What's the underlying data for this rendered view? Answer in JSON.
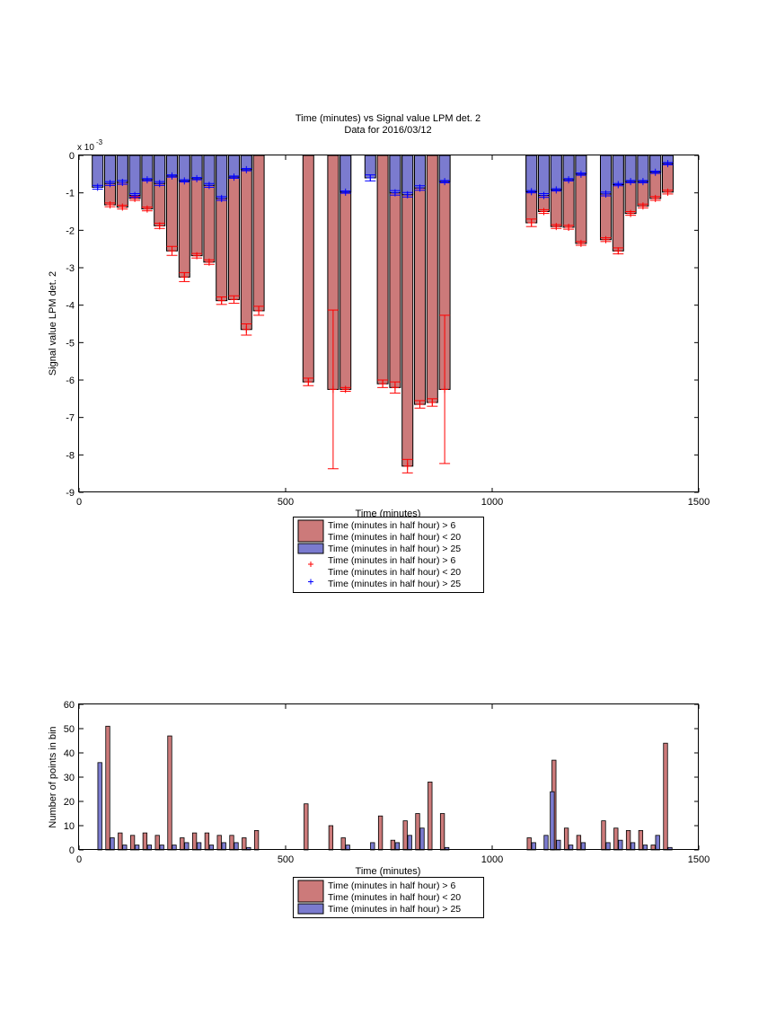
{
  "colors": {
    "series_a_face": "#cc7a7a",
    "series_b_face": "#7b7bcf",
    "bar_edge": "#000000",
    "series_a_marker": "#ff0000",
    "series_b_marker": "#0000ff",
    "axis": "#000000"
  },
  "chart_data": [
    {
      "type": "bar",
      "title": "Time (minutes) vs Signal value LPM det. 2",
      "subtitle": "Data for 2016/03/12",
      "xlabel": "Time (minutes)",
      "ylabel": "Signal value LPM det. 2",
      "exponent_label": "x 10",
      "exponent_power": "-3",
      "xlim": [
        0,
        1500
      ],
      "ylim": [
        -9,
        0
      ],
      "xticks": [
        0,
        500,
        1000,
        1500
      ],
      "yticks": [
        0,
        -1,
        -2,
        -3,
        -4,
        -5,
        -6,
        -7,
        -8,
        -9
      ],
      "grid": false,
      "legend_position": "below",
      "legend": [
        {
          "kind": "bar",
          "series": "a",
          "lines": [
            "Time (minutes in half hour) > 6",
            "Time (minutes in half hour) < 20"
          ]
        },
        {
          "kind": "bar",
          "series": "b",
          "lines": [
            "Time (minutes in half hour) > 25"
          ]
        },
        {
          "kind": "marker",
          "series": "a",
          "lines": [
            "Time (minutes in half hour) > 6",
            "Time (minutes in half hour) < 20"
          ]
        },
        {
          "kind": "marker",
          "series": "b",
          "lines": [
            "Time (minutes in half hour) > 25"
          ]
        }
      ],
      "series": [
        {
          "x": [
            75,
            105,
            135,
            165,
            195,
            225,
            255,
            285,
            315,
            345,
            375,
            405,
            435,
            555,
            615,
            645,
            735,
            765,
            795,
            825,
            855,
            885,
            1095,
            1125,
            1155,
            1185,
            1215,
            1275,
            1305,
            1335,
            1365,
            1395,
            1425
          ],
          "values": [
            -1.32,
            -1.38,
            -1.15,
            -1.43,
            -1.88,
            -2.55,
            -3.25,
            -2.68,
            -2.85,
            -3.88,
            -3.85,
            -4.65,
            -4.15,
            -6.05,
            -6.25,
            -6.25,
            -6.1,
            -6.2,
            -8.3,
            -6.65,
            -6.6,
            -6.25,
            -1.8,
            -1.5,
            -1.9,
            -1.92,
            -2.35,
            -2.25,
            -2.55,
            -1.55,
            -1.35,
            -1.15,
            -0.98
          ],
          "err": [
            0.05,
            0.05,
            0.05,
            0.05,
            0.07,
            0.12,
            0.12,
            0.06,
            0.06,
            0.1,
            0.1,
            0.15,
            0.12,
            0.1,
            2.12,
            0.05,
            0.1,
            0.15,
            0.18,
            0.1,
            0.1,
            1.98,
            0.1,
            0.05,
            0.05,
            0.05,
            0.05,
            0.05,
            0.08,
            0.05,
            0.05,
            0.05,
            0.05
          ]
        },
        {
          "x": [
            45,
            75,
            105,
            135,
            165,
            195,
            225,
            255,
            285,
            315,
            345,
            375,
            405,
            645,
            705,
            765,
            795,
            825,
            885,
            1095,
            1125,
            1155,
            1185,
            1215,
            1275,
            1305,
            1335,
            1365,
            1395,
            1425
          ],
          "values": [
            -0.85,
            -0.75,
            -0.72,
            -1.07,
            -0.65,
            -0.75,
            -0.55,
            -0.68,
            -0.62,
            -0.8,
            -1.15,
            -0.58,
            -0.38,
            -0.98,
            -0.6,
            -1.0,
            -1.05,
            -0.87,
            -0.7,
            -0.97,
            -1.07,
            -0.92,
            -0.65,
            -0.5,
            -1.03,
            -0.78,
            -0.7,
            -0.7,
            -0.45,
            -0.22
          ],
          "err": [
            0.05,
            0.05,
            0.05,
            0.05,
            0.03,
            0.05,
            0.03,
            0.03,
            0.03,
            0.05,
            0.05,
            0.03,
            0.03,
            0.03,
            0.08,
            0.06,
            0.06,
            0.06,
            0.03,
            0.03,
            0.05,
            0.03,
            0.03,
            0.03,
            0.05,
            0.03,
            0.03,
            0.03,
            0.03,
            0.03
          ]
        }
      ]
    },
    {
      "type": "bar",
      "title": "",
      "xlabel": "Time (minutes)",
      "ylabel": "Number of points in bin",
      "xlim": [
        0,
        1500
      ],
      "ylim": [
        0,
        60
      ],
      "xticks": [
        0,
        500,
        1000,
        1500
      ],
      "yticks": [
        0,
        10,
        20,
        30,
        40,
        50,
        60
      ],
      "grid": false,
      "legend_position": "below",
      "legend": [
        {
          "kind": "bar",
          "series": "a",
          "lines": [
            "Time (minutes in half hour) > 6",
            "Time (minutes in half hour) < 20"
          ]
        },
        {
          "kind": "bar",
          "series": "b",
          "lines": [
            "Time (minutes in half hour) > 25"
          ]
        }
      ],
      "series": [
        {
          "x": [
            75,
            105,
            135,
            165,
            195,
            225,
            255,
            285,
            315,
            345,
            375,
            405,
            435,
            555,
            615,
            645,
            735,
            765,
            795,
            825,
            855,
            885,
            1095,
            1155,
            1185,
            1215,
            1275,
            1305,
            1335,
            1365,
            1395,
            1425
          ],
          "values": [
            51,
            7,
            6,
            7,
            6,
            47,
            5,
            7,
            7,
            6,
            6,
            5,
            8,
            19,
            10,
            5,
            14,
            4,
            12,
            15,
            28,
            15,
            5,
            37,
            9,
            6,
            12,
            9,
            8,
            8,
            2,
            44
          ]
        },
        {
          "x": [
            45,
            75,
            105,
            135,
            165,
            195,
            225,
            255,
            285,
            315,
            345,
            375,
            405,
            645,
            705,
            765,
            795,
            825,
            885,
            1095,
            1125,
            1140,
            1155,
            1185,
            1215,
            1275,
            1305,
            1335,
            1365,
            1395,
            1425
          ],
          "values": [
            36,
            5,
            2,
            2,
            2,
            2,
            2,
            3,
            3,
            2,
            3,
            3,
            1,
            2,
            3,
            3,
            6,
            9,
            1,
            3,
            6,
            24,
            4,
            2,
            3,
            3,
            4,
            3,
            2,
            6,
            1
          ]
        }
      ]
    }
  ]
}
